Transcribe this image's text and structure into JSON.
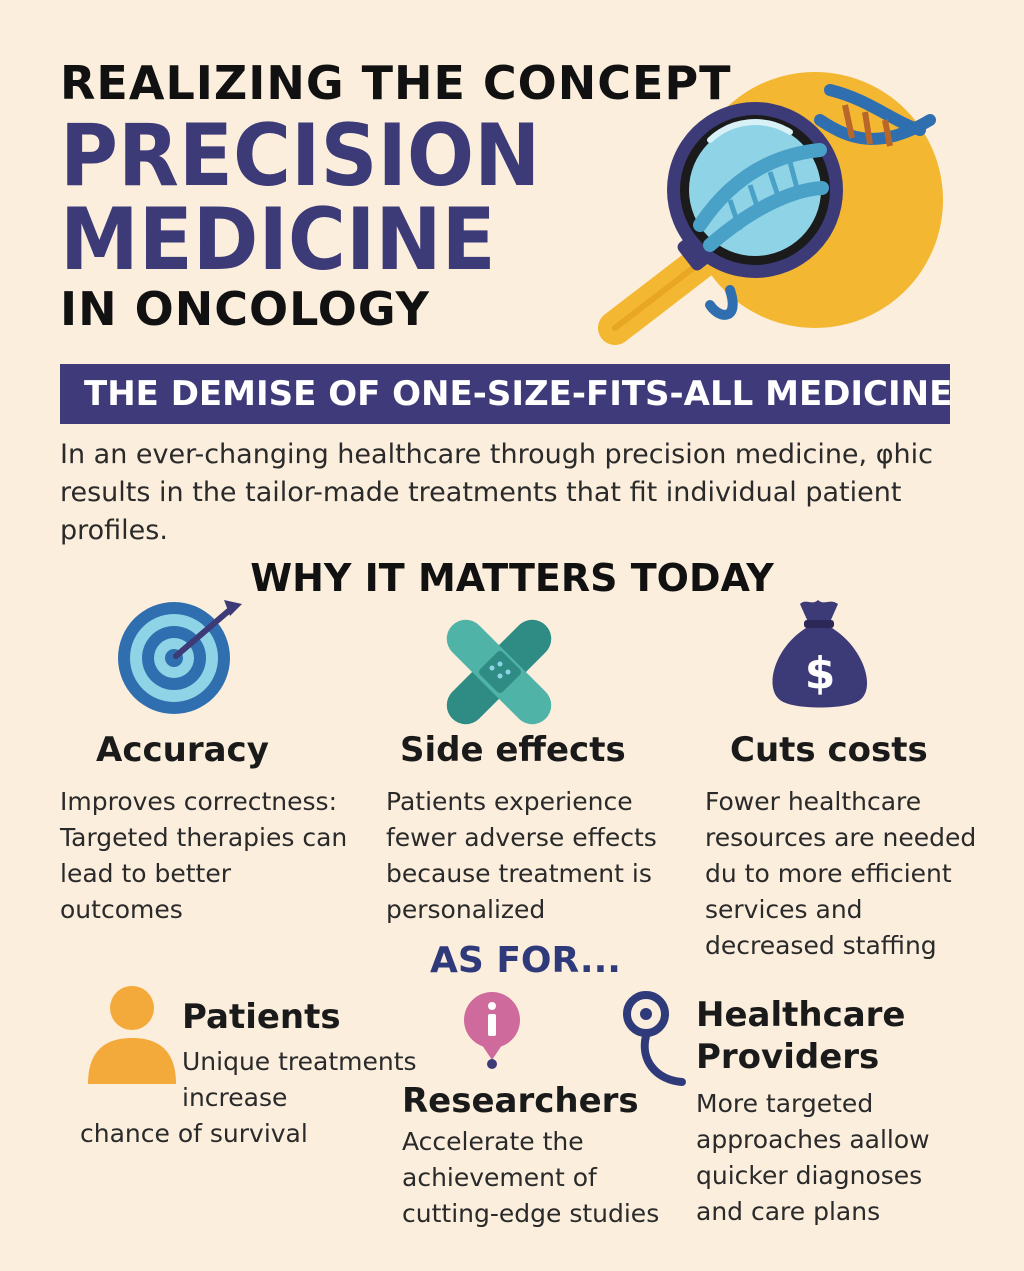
{
  "header": {
    "line1": "REALIZING THE CONCEPT",
    "line2": "PRECISION",
    "line3": "MEDICINE",
    "line4": "IN ONCOLOGY"
  },
  "banner": "THE DEMISE OF ONE-SIZE-FITS-ALL MEDICINE",
  "intro": "In an ever-changing healthcare through precision medicine, φhic results in the tailor-made treatments that fit individual patient profiles.",
  "why_title": "WHY IT MATTERS TODAY",
  "benefits": [
    {
      "title": "Accuracy",
      "text": "Improves correctness: Targeted therapies can lead to better outcomes",
      "icon": "target-icon"
    },
    {
      "title": "Side effects",
      "text": "Patients experience fewer adverse effects because treatment is personalized",
      "icon": "bandage-icon"
    },
    {
      "title": "Cuts costs",
      "text": "Fower healthcare resources are needed du to more efficient services and decreased staffing",
      "icon": "money-bag-icon"
    }
  ],
  "as_for": "AS FOR...",
  "groups": [
    {
      "title": "Patients",
      "text1": "Unique treatments",
      "text2": "increase",
      "text3": "chance of survival",
      "icon": "person-icon"
    },
    {
      "title": "Researchers",
      "text": "Accelerate the achievement of cutting-edge studies",
      "icon": "info-pin-icon"
    },
    {
      "title": "Healthcare Providers",
      "text": "More targeted approaches aallow quicker diagnoses and care plans",
      "icon": "stethoscope-icon"
    }
  ],
  "colors": {
    "background": "#fbeedd",
    "navy": "#3d3a78",
    "gold": "#f4b731",
    "teal": "#2e8c85",
    "orange": "#f4a93b",
    "pink": "#cf6a9c"
  }
}
